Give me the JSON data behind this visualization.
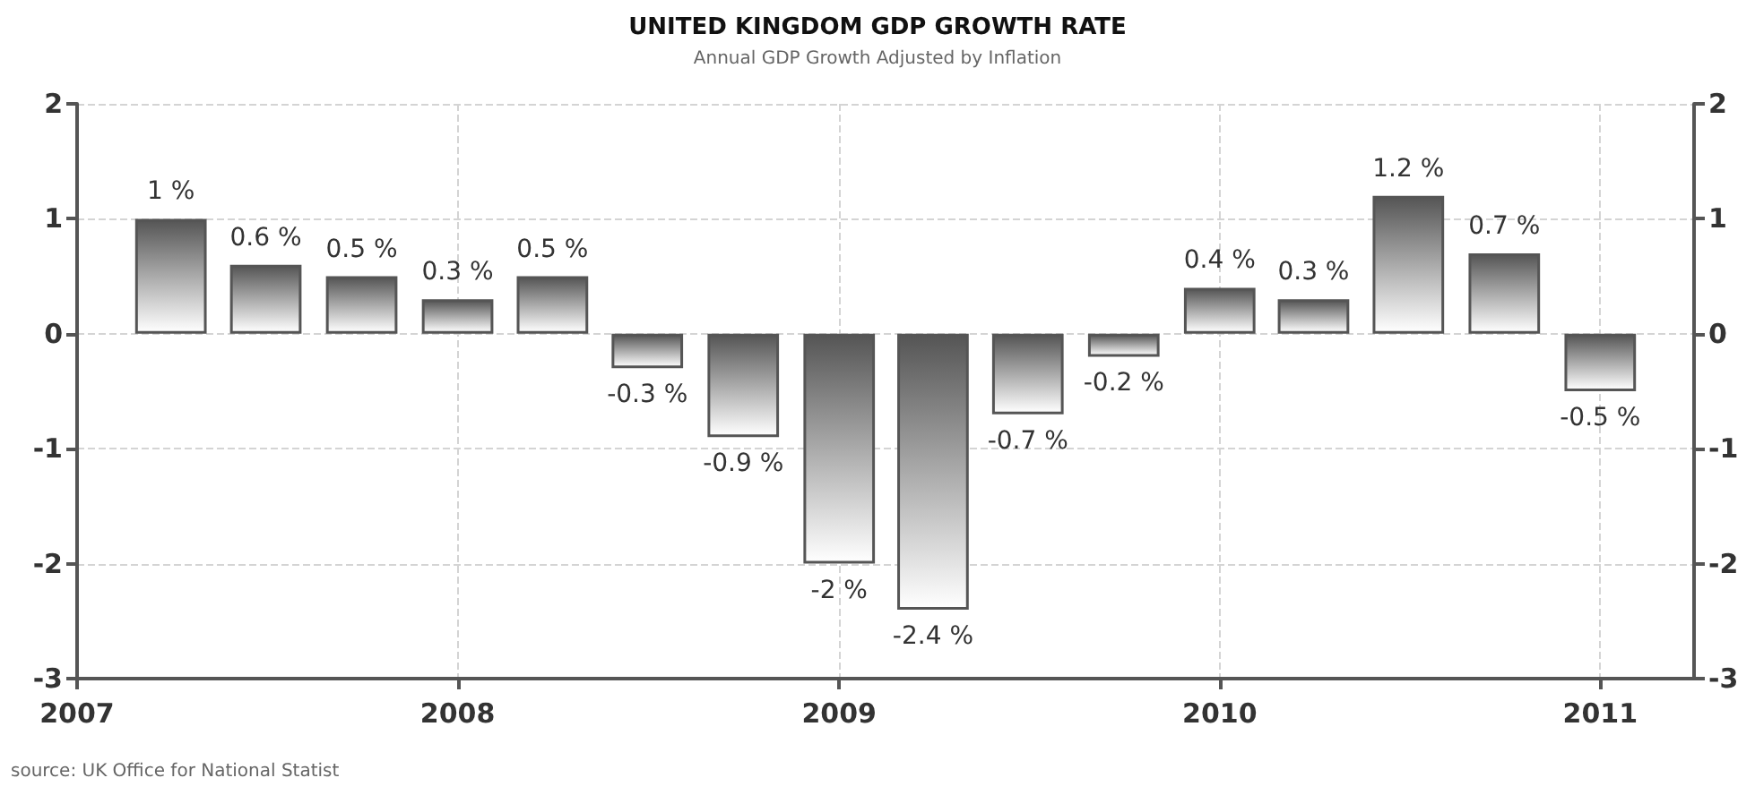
{
  "chart_data": {
    "type": "bar",
    "title": "UNITED KINGDOM GDP GROWTH RATE",
    "subtitle": "Annual GDP Growth Adjusted by Inflation",
    "x": [
      "2007-04",
      "2007-07",
      "2007-10",
      "2008-01",
      "2008-04",
      "2008-07",
      "2008-10",
      "2009-01",
      "2009-04",
      "2009-07",
      "2009-10",
      "2010-01",
      "2010-04",
      "2010-07",
      "2010-10",
      "2011-01"
    ],
    "values": [
      1,
      0.6,
      0.5,
      0.3,
      0.5,
      -0.3,
      -0.9,
      -2,
      -2.4,
      -0.7,
      -0.2,
      0.4,
      0.3,
      1.2,
      0.7,
      -0.5
    ],
    "value_labels": [
      "1 %",
      "0.6 %",
      "0.5 %",
      "0.3 %",
      "0.5 %",
      "-0.3 %",
      "-0.9 %",
      "-2 %",
      "-2.4 %",
      "-0.7 %",
      "-0.2 %",
      "0.4 %",
      "0.3 %",
      "1.2 %",
      "0.7 %",
      "-0.5 %"
    ],
    "color": "#555555",
    "xlim": [
      "2007",
      "2011-04"
    ],
    "xticks": [
      "2007",
      "2008",
      "2009",
      "2010",
      "2011"
    ],
    "ylim": [
      -3,
      2
    ],
    "yticks": [
      -3,
      -2,
      -1,
      0,
      1,
      2
    ],
    "y2lim": [
      -3,
      2
    ],
    "y2ticks": [
      -3,
      -2,
      -1,
      0,
      1,
      2
    ],
    "grid": true,
    "annotations": [
      "source: UK Office for National Statist"
    ]
  }
}
